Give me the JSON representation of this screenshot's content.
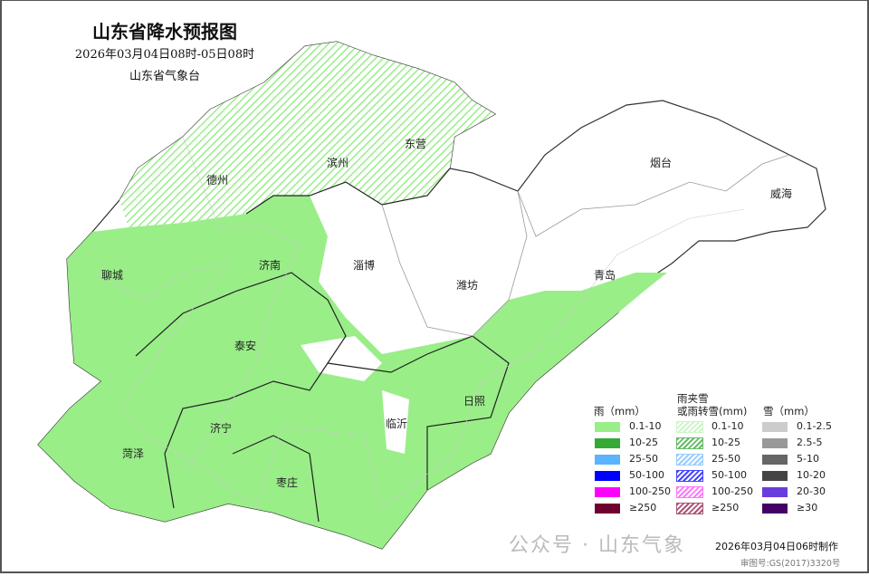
{
  "title": "山东省降水预报图",
  "period": "2026年03月04日08时-05日08时",
  "agency": "山东省气象台",
  "cities": [
    "德州",
    "滨州",
    "东营",
    "烟台",
    "威海",
    "聊城",
    "济南",
    "淄博",
    "潍坊",
    "青岛",
    "泰安",
    "日照",
    "临沂",
    "济宁",
    "菏泽",
    "枣庄"
  ],
  "legend": {
    "rain": {
      "header": "雨（mm）",
      "items": [
        {
          "label": "0.1-10",
          "color": "#99ee88"
        },
        {
          "label": "10-25",
          "color": "#33aa33"
        },
        {
          "label": "25-50",
          "color": "#5ab4ff"
        },
        {
          "label": "50-100",
          "color": "#0000ff"
        },
        {
          "label": "100-250",
          "color": "#ff00ff"
        },
        {
          "label": "≥250",
          "color": "#700030"
        }
      ]
    },
    "mixed": {
      "header1": "雨夹雪",
      "header2": "或雨转雪(mm)",
      "items": [
        {
          "label": "0.1-10",
          "color": "#ccf5c8"
        },
        {
          "label": "10-25",
          "color": "#66bb66"
        },
        {
          "label": "25-50",
          "color": "#99ccff"
        },
        {
          "label": "50-100",
          "color": "#4444ff"
        },
        {
          "label": "100-250",
          "color": "#ff77ff"
        },
        {
          "label": "≥250",
          "color": "#aa5577"
        }
      ]
    },
    "snow": {
      "header": "雪（mm）",
      "items": [
        {
          "label": "0.1-2.5",
          "color": "#cccccc"
        },
        {
          "label": "2.5-5",
          "color": "#999999"
        },
        {
          "label": "5-10",
          "color": "#666666"
        },
        {
          "label": "10-20",
          "color": "#444444"
        },
        {
          "label": "20-30",
          "color": "#6a3cdd"
        },
        {
          "label": "≥30",
          "color": "#440066"
        }
      ]
    }
  },
  "footer": {
    "made": "2026年03月04日06时制作",
    "review": "审图号:GS(2017)3320号",
    "watermark": "公众号 · 山东气象"
  },
  "colors": {
    "rain_light": "#99ee88",
    "border": "#000000"
  }
}
